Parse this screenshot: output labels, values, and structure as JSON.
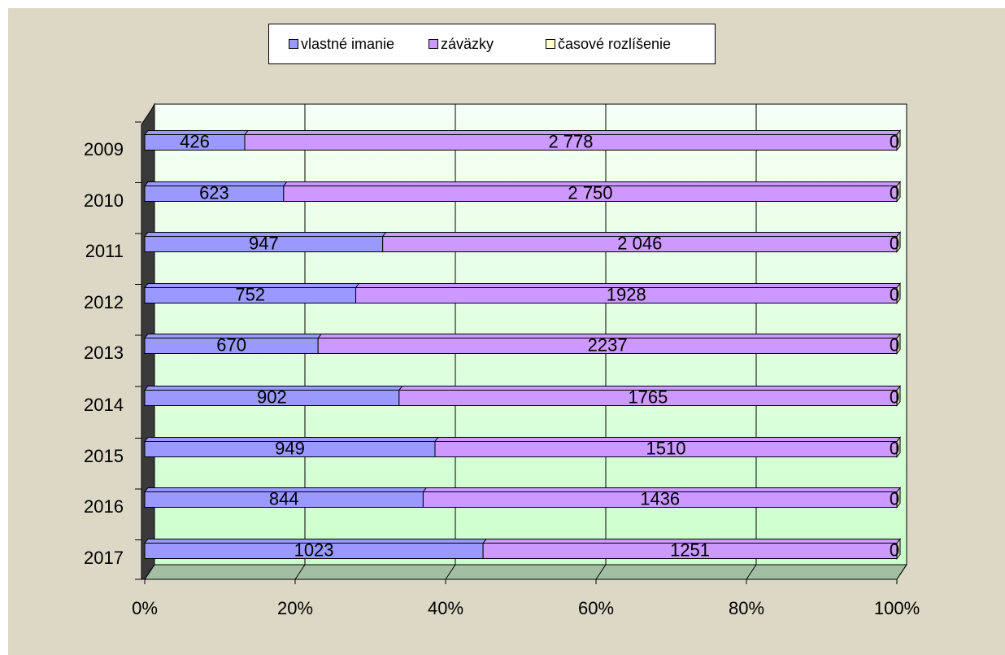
{
  "chart_data": {
    "type": "bar",
    "orientation": "horizontal",
    "stacked": "100%",
    "categories": [
      "2009",
      "2010",
      "2011",
      "2012",
      "2013",
      "2014",
      "2015",
      "2016",
      "2017"
    ],
    "series": [
      {
        "name": "vlastné imanie",
        "values": [
          426,
          623,
          947,
          752,
          670,
          902,
          949,
          844,
          1023
        ],
        "labels": [
          "426",
          "623",
          "947",
          "752",
          "670",
          "902",
          "949",
          "844",
          "1023"
        ],
        "color": "#9999ff"
      },
      {
        "name": "záväzky",
        "values": [
          2778,
          2750,
          2046,
          1928,
          2237,
          1765,
          1510,
          1436,
          1251
        ],
        "labels": [
          "2 778",
          "2 750",
          "2 046",
          "1928",
          "2237",
          "1765",
          "1510",
          "1436",
          "1251"
        ],
        "color": "#cc99ff"
      },
      {
        "name": "časové rozlíšenie",
        "values": [
          0,
          0,
          0,
          0,
          0,
          0,
          0,
          0,
          0
        ],
        "labels": [
          "0",
          "0",
          "0",
          "0",
          "0",
          "0",
          "0",
          "0",
          "0"
        ],
        "color": "#ffffcc"
      }
    ],
    "x_ticks": [
      "0%",
      "20%",
      "40%",
      "60%",
      "80%",
      "100%"
    ],
    "xlim": [
      0,
      100
    ],
    "grid": true,
    "legend_position": "top",
    "three_d": true,
    "wall_gradient": [
      "#f6fff6",
      "#ccffcc"
    ],
    "floor_color": "#a3bfa3",
    "side_wall_color": "#3a3a3a",
    "background_color": "#ddd8c6"
  }
}
